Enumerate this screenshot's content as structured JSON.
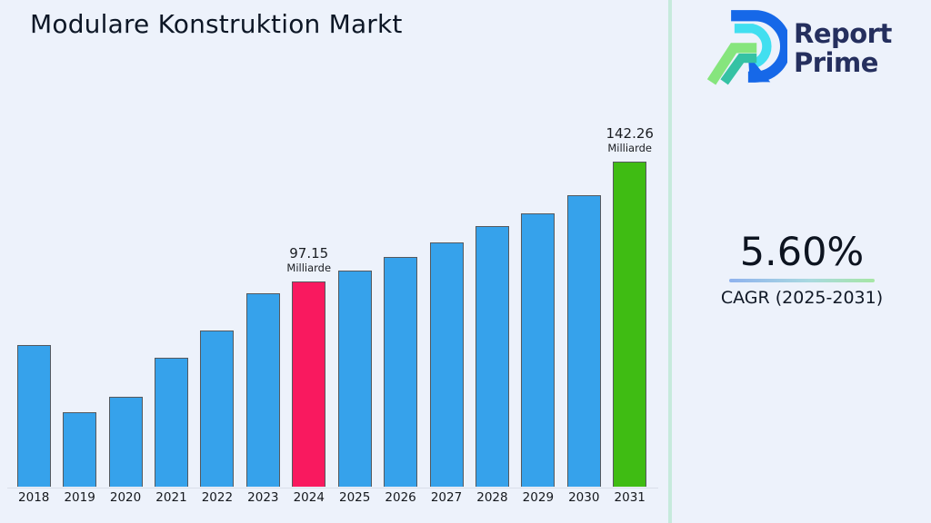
{
  "page": {
    "background": "#EDF2FB",
    "divider_color": "#C6EADC"
  },
  "header": {
    "title": "Modulare Konstruktion Markt"
  },
  "logo": {
    "line1": "Report",
    "line2": "Prime",
    "text_color": "#252F5E",
    "mark_colors": {
      "blue": "#1668E8",
      "cyan": "#41DFF0",
      "green": "#86E57D",
      "teal": "#35C2A4"
    }
  },
  "cagr": {
    "value": "5.60%",
    "label": "CAGR (2025-2031)"
  },
  "chart_data": {
    "type": "bar",
    "title": "Modulare Konstruktion Markt",
    "unit": "Milliarde",
    "categories": [
      "2018",
      "2019",
      "2020",
      "2021",
      "2022",
      "2023",
      "2024",
      "2025",
      "2026",
      "2027",
      "2028",
      "2029",
      "2030",
      "2031"
    ],
    "values": [
      73.2,
      47.9,
      53.8,
      68.5,
      78.7,
      92.7,
      97.15,
      101.3,
      106.4,
      111.9,
      118.0,
      122.8,
      129.6,
      142.26
    ],
    "labeled_values": {
      "2024": "97.15",
      "2031": "142.26"
    },
    "values_exact": [
      "2024",
      "2031"
    ],
    "bar_colors": {
      "default": "#36A2EB",
      "2024": "#F9195F",
      "2031": "#3FBC13"
    },
    "bar_border_color": "#55595E",
    "xlabel": "",
    "ylabel": "",
    "ylim": [
      0,
      150
    ],
    "grid": false,
    "legend": false,
    "annotations": [
      {
        "category": "2024",
        "text": "97.15 Milliarde"
      },
      {
        "category": "2031",
        "text": "142.26 Milliarde"
      }
    ]
  }
}
